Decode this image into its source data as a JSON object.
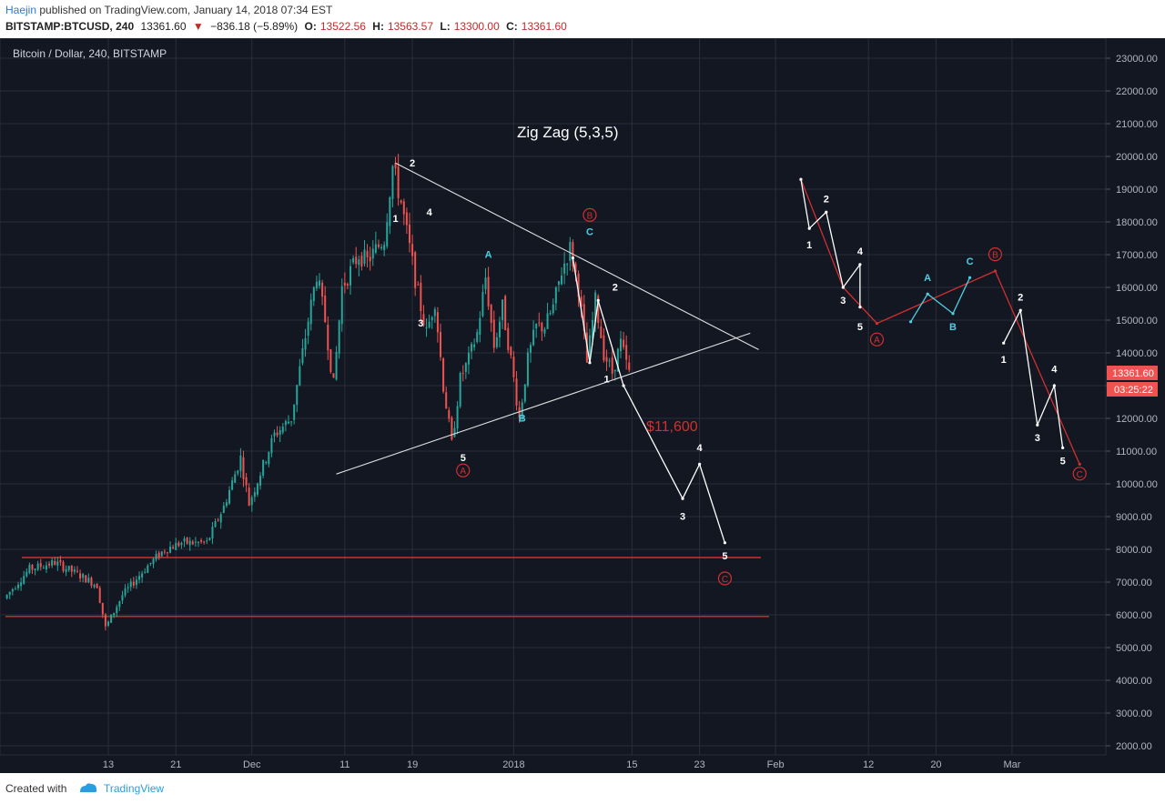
{
  "header": {
    "author": "Haejin",
    "published": "published on TradingView.com, January 14, 2018 07:34 EST",
    "symbol": "BITSTAMP:BTCUSD, 240",
    "last": "13361.60",
    "change": "−836.18 (−5.89%)",
    "open_label": "O:",
    "open": "13522.56",
    "high_label": "H:",
    "high": "13563.57",
    "low_label": "L:",
    "low": "13300.00",
    "close_label": "C:",
    "close": "13361.60"
  },
  "footer": {
    "created": "Created with",
    "brand": "TradingView"
  },
  "chart_data": {
    "type": "candlestick",
    "title": "Bitcoin / Dollar, 240, BITSTAMP",
    "annotation_title": "Zig Zag (5,3,5)",
    "target_label": "$11,600",
    "price_tag": "13361.60",
    "countdown_tag": "03:25:22",
    "ylim": [
      2000,
      23000
    ],
    "y_ticks": [
      "23000.00",
      "22000.00",
      "21000.00",
      "20000.00",
      "19000.00",
      "18000.00",
      "17000.00",
      "16000.00",
      "15000.00",
      "14000.00",
      "13000.00",
      "12000.00",
      "11000.00",
      "10000.00",
      "9000.00",
      "8000.00",
      "7000.00",
      "6000.00",
      "5000.00",
      "4000.00",
      "3000.00",
      "2000.00"
    ],
    "x_ticks": [
      {
        "label": "13",
        "day": 13
      },
      {
        "label": "21",
        "day": 21
      },
      {
        "label": "Dec",
        "day": 30
      },
      {
        "label": "11",
        "day": 41
      },
      {
        "label": "19",
        "day": 49
      },
      {
        "label": "2018",
        "day": 61
      },
      {
        "label": "15",
        "day": 75
      },
      {
        "label": "23",
        "day": 83
      },
      {
        "label": "Feb",
        "day": 92
      },
      {
        "label": "12",
        "day": 103
      },
      {
        "label": "20",
        "day": 111
      },
      {
        "label": "Mar",
        "day": 120
      }
    ],
    "price_path": [
      [
        1,
        6500
      ],
      [
        4,
        7400
      ],
      [
        7,
        7600
      ],
      [
        10,
        7200
      ],
      [
        12,
        6900
      ],
      [
        13,
        5600
      ],
      [
        15,
        6600
      ],
      [
        18,
        7500
      ],
      [
        20,
        8000
      ],
      [
        22,
        8200
      ],
      [
        25,
        8200
      ],
      [
        27,
        9300
      ],
      [
        29,
        10800
      ],
      [
        30,
        9400
      ],
      [
        33,
        11500
      ],
      [
        35,
        12000
      ],
      [
        37,
        15000
      ],
      [
        38,
        16400
      ],
      [
        39,
        15000
      ],
      [
        40,
        13000
      ],
      [
        41,
        16000
      ],
      [
        43,
        17000
      ],
      [
        44,
        16800
      ],
      [
        46,
        17500
      ],
      [
        47,
        19700
      ],
      [
        48,
        18600
      ],
      [
        50,
        15800
      ],
      [
        51,
        14600
      ],
      [
        52,
        15600
      ],
      [
        53,
        13000
      ],
      [
        54,
        11200
      ],
      [
        55,
        13200
      ],
      [
        56,
        13800
      ],
      [
        57,
        14600
      ],
      [
        58,
        16300
      ],
      [
        59,
        14200
      ],
      [
        60,
        15400
      ],
      [
        61,
        13800
      ],
      [
        62,
        12000
      ],
      [
        63,
        13800
      ],
      [
        64,
        14800
      ],
      [
        65,
        14800
      ],
      [
        66,
        15400
      ],
      [
        67,
        16500
      ],
      [
        68,
        17200
      ],
      [
        69,
        16000
      ],
      [
        70,
        13700
      ],
      [
        71,
        15600
      ],
      [
        72,
        14000
      ],
      [
        73,
        13400
      ],
      [
        74,
        14300
      ],
      [
        75,
        13361
      ]
    ],
    "resistance_line": [
      [
        47,
        19800
      ],
      [
        90,
        14100
      ]
    ],
    "support_line": [
      [
        40,
        10300
      ],
      [
        89,
        14600
      ]
    ],
    "horizontal_lines": [
      7750,
      5950
    ],
    "projection_main": [
      [
        68,
        16900
      ],
      [
        70,
        13700
      ],
      [
        71,
        15600
      ],
      [
        74,
        13000
      ],
      [
        81,
        9550
      ],
      [
        83,
        10600
      ],
      [
        86,
        8200
      ]
    ],
    "projection_right_white": [
      [
        95,
        19300
      ],
      [
        96,
        17800
      ],
      [
        98,
        18300
      ],
      [
        100,
        16000
      ],
      [
        102,
        16700
      ],
      [
        102,
        15400
      ]
    ],
    "projection_right_cyan": [
      [
        108,
        14950
      ],
      [
        110,
        15800
      ],
      [
        113,
        15200
      ],
      [
        115,
        16300
      ]
    ],
    "projection_right_white2": [
      [
        119,
        14300
      ],
      [
        121,
        15300
      ],
      [
        123,
        11800
      ],
      [
        125,
        13000
      ],
      [
        126,
        11100
      ]
    ],
    "projection_right_red": [
      [
        95,
        19300
      ],
      [
        100,
        16000
      ],
      [
        104,
        14900
      ],
      [
        118,
        16500
      ],
      [
        128,
        10600
      ]
    ],
    "wave_labels": [
      {
        "t": "2",
        "day": 49,
        "price": 19700,
        "c": "white"
      },
      {
        "t": "1",
        "day": 47,
        "price": 18000,
        "c": "white"
      },
      {
        "t": "4",
        "day": 51,
        "price": 18200,
        "c": "white"
      },
      {
        "t": "3",
        "day": 50,
        "price": 14800,
        "c": "white"
      },
      {
        "t": "5",
        "day": 55,
        "price": 10700,
        "c": "white"
      },
      {
        "t": "A",
        "day": 55,
        "price": 10300,
        "c": "red-circle"
      },
      {
        "t": "A",
        "day": 58,
        "price": 16900,
        "c": "cyan"
      },
      {
        "t": "B",
        "day": 62,
        "price": 11900,
        "c": "cyan"
      },
      {
        "t": "B",
        "day": 70,
        "price": 18100,
        "c": "red-circle"
      },
      {
        "t": "C",
        "day": 70,
        "price": 17600,
        "c": "cyan"
      },
      {
        "t": "2",
        "day": 73,
        "price": 15900,
        "c": "white"
      },
      {
        "t": "1",
        "day": 72,
        "price": 13100,
        "c": "white"
      },
      {
        "t": "3",
        "day": 81,
        "price": 8900,
        "c": "white"
      },
      {
        "t": "4",
        "day": 83,
        "price": 11000,
        "c": "white"
      },
      {
        "t": "5",
        "day": 86,
        "price": 7700,
        "c": "white"
      },
      {
        "t": "C",
        "day": 86,
        "price": 7000,
        "c": "red-circle"
      },
      {
        "t": "2",
        "day": 98,
        "price": 18600,
        "c": "white"
      },
      {
        "t": "1",
        "day": 96,
        "price": 17200,
        "c": "white"
      },
      {
        "t": "4",
        "day": 102,
        "price": 17000,
        "c": "white"
      },
      {
        "t": "3",
        "day": 100,
        "price": 15500,
        "c": "white"
      },
      {
        "t": "5",
        "day": 102,
        "price": 14700,
        "c": "white"
      },
      {
        "t": "A",
        "day": 104,
        "price": 14300,
        "c": "red-circle"
      },
      {
        "t": "A",
        "day": 110,
        "price": 16200,
        "c": "cyan"
      },
      {
        "t": "B",
        "day": 113,
        "price": 14700,
        "c": "cyan"
      },
      {
        "t": "C",
        "day": 115,
        "price": 16700,
        "c": "cyan"
      },
      {
        "t": "B",
        "day": 118,
        "price": 16900,
        "c": "red-circle"
      },
      {
        "t": "2",
        "day": 121,
        "price": 15600,
        "c": "white"
      },
      {
        "t": "1",
        "day": 119,
        "price": 13700,
        "c": "white"
      },
      {
        "t": "4",
        "day": 125,
        "price": 13400,
        "c": "white"
      },
      {
        "t": "3",
        "day": 123,
        "price": 11300,
        "c": "white"
      },
      {
        "t": "5",
        "day": 126,
        "price": 10600,
        "c": "white"
      },
      {
        "t": "C",
        "day": 128,
        "price": 10200,
        "c": "red-circle"
      }
    ],
    "colors": {
      "background": "#131722",
      "grid": "#2a2e39",
      "up": "#26a69a",
      "down": "#ef5350",
      "red_line": "#d32f2f",
      "cyan": "#4dd0e1",
      "axis_text": "#b2b5be"
    }
  }
}
